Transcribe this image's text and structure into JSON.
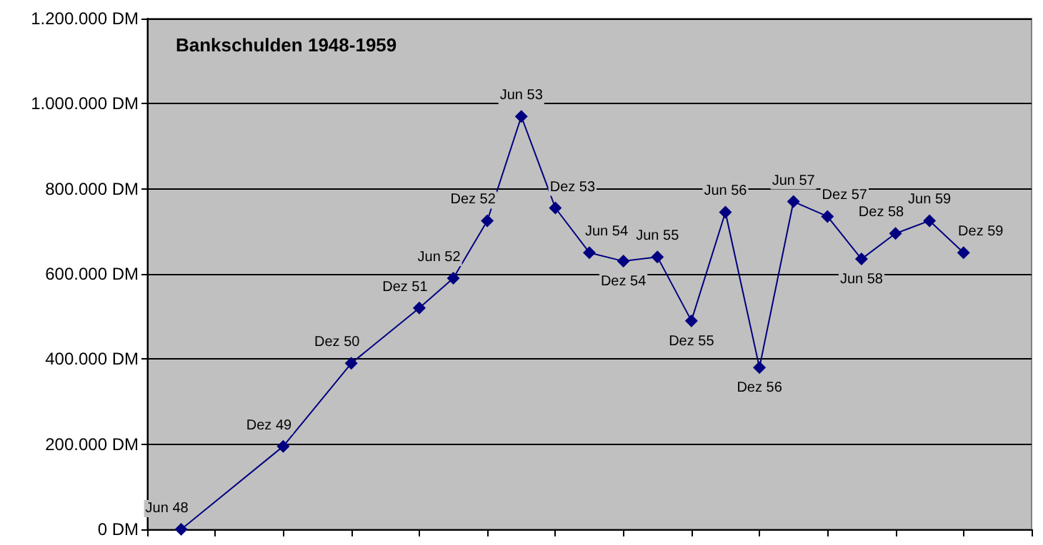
{
  "chart_data": {
    "type": "line",
    "title": "Bankschulden 1948-1959",
    "categories": [
      null,
      null,
      null,
      null,
      null,
      null,
      null,
      null,
      null,
      null,
      null,
      null,
      null,
      null,
      null,
      null,
      null,
      null,
      null,
      null,
      null,
      null,
      null,
      null,
      null,
      null,
      null
    ],
    "series": [
      {
        "color": "#000080",
        "values": [
          null,
          0,
          null,
          null,
          195000,
          null,
          390000,
          null,
          520000,
          590000,
          725000,
          970000,
          755000,
          650000,
          630000,
          640000,
          490000,
          745000,
          380000,
          770000,
          735000,
          635000,
          695000,
          725000,
          650000,
          null,
          null
        ],
        "value_labels": [
          null,
          "Jun 48",
          null,
          null,
          "Dez 49",
          null,
          "Dez 50",
          null,
          "Dez 51",
          "Jun 52",
          "Dez 52",
          "Jun 53",
          "Dez 53",
          "Jun 54",
          "Dez 54",
          "Jun 55",
          "Dez 55",
          "Jun 56",
          "Dez 56",
          "Jun 57",
          "Dez 57",
          "Jun 58",
          "Dez 58",
          "Jun 59",
          "Dez 59",
          null,
          null
        ]
      }
    ],
    "ylim": [
      0,
      1200000
    ],
    "yticks": [
      {
        "value": 0,
        "label": "0 DM"
      },
      {
        "value": 200000,
        "label": "200.000 DM"
      },
      {
        "value": 400000,
        "label": "400.000 DM"
      },
      {
        "value": 600000,
        "label": "600.000 DM"
      },
      {
        "value": 800000,
        "label": "800.000 DM"
      },
      {
        "value": 1000000,
        "label": "1.000.000 DM"
      },
      {
        "value": 1200000,
        "label": "1.200.000 DM"
      }
    ],
    "tick_labels": "y",
    "grid": "y",
    "marker": "diamond",
    "line_style": "solid"
  }
}
